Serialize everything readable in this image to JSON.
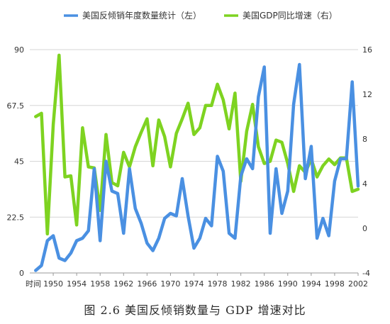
{
  "chart_data": {
    "type": "line",
    "title": "",
    "caption": "图 2.6 美国反倾销数量与 GDP 增速对比",
    "x_axis_title": "时间",
    "x": [
      1947,
      1948,
      1949,
      1950,
      1951,
      1952,
      1953,
      1954,
      1955,
      1956,
      1957,
      1958,
      1959,
      1960,
      1961,
      1962,
      1963,
      1964,
      1965,
      1966,
      1967,
      1968,
      1969,
      1970,
      1971,
      1972,
      1973,
      1974,
      1975,
      1976,
      1977,
      1978,
      1979,
      1980,
      1981,
      1982,
      1983,
      1984,
      1985,
      1986,
      1987,
      1988,
      1989,
      1990,
      1991,
      1992,
      1993,
      1994,
      1995,
      1996,
      1997,
      1998,
      1999,
      2000,
      2001,
      2002
    ],
    "x_tick_labels": [
      "1950",
      "1954",
      "1958",
      "1962",
      "1966",
      "1970",
      "1974",
      "1978",
      "1982",
      "1986",
      "1990",
      "1994",
      "1998",
      "2002"
    ],
    "y_left": {
      "ticks": [
        "0",
        "22.5",
        "45",
        "67.5",
        "90"
      ],
      "ylim": [
        0,
        90
      ]
    },
    "y_right": {
      "ticks": [
        "-4",
        "0",
        "4",
        "8",
        "12",
        "16"
      ],
      "ylim": [
        -4,
        16
      ]
    },
    "grid": true,
    "legend_position": "top",
    "series": [
      {
        "name": "美国反倾销年度数量统计（左）",
        "axis": "left",
        "color": "#4a90e2",
        "values": [
          1,
          3,
          13,
          15,
          6,
          5,
          8,
          13,
          14,
          17,
          42,
          13,
          45,
          33,
          32,
          16,
          42,
          26,
          20,
          12,
          9,
          14,
          22,
          24,
          23,
          38,
          23,
          10,
          14,
          22,
          19,
          47,
          41,
          16,
          14,
          39,
          46,
          42,
          71,
          83,
          16,
          42,
          24,
          33,
          68,
          84,
          38,
          51,
          14,
          22,
          15,
          37,
          46,
          46,
          77,
          35
        ]
      },
      {
        "name": "美国GDP同比增速（右）",
        "axis": "right",
        "color": "#7ed321",
        "values": [
          10,
          10.3,
          -0.5,
          9.3,
          15.5,
          4.6,
          4.7,
          0.3,
          9,
          5.5,
          5.4,
          1.6,
          8.4,
          4.1,
          3.8,
          6.8,
          5.5,
          7.3,
          8.6,
          9.8,
          5.6,
          9.7,
          8.2,
          5.5,
          8.5,
          9.8,
          11.2,
          8.4,
          9,
          11,
          11,
          12.9,
          11.5,
          8.9,
          12.1,
          4.2,
          8.7,
          11.1,
          7.3,
          5.8,
          6,
          7.9,
          7.7,
          5.8,
          3.3,
          5.6,
          5,
          6.2,
          4.6,
          5.6,
          6.2,
          5.7,
          6.3,
          6.3,
          3.3,
          3.5
        ]
      }
    ]
  }
}
